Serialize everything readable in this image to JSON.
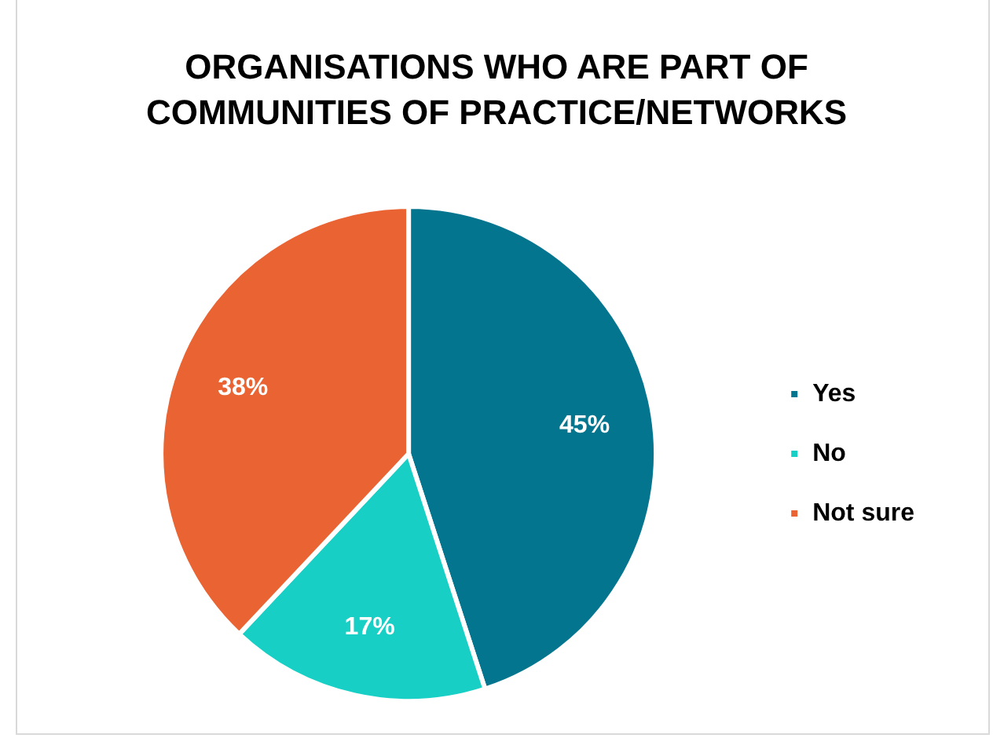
{
  "chart_data": {
    "type": "pie",
    "title": "ORGANISATIONS WHO ARE PART OF COMMUNITIES OF PRACTICE/NETWORKS",
    "categories": [
      "Yes",
      "No",
      "Not sure"
    ],
    "values": [
      45,
      17,
      38
    ],
    "colors": [
      "#03758f",
      "#17cfc4",
      "#ea6332"
    ],
    "value_labels": [
      "45%",
      "17%",
      "38%"
    ],
    "legend": "right"
  }
}
